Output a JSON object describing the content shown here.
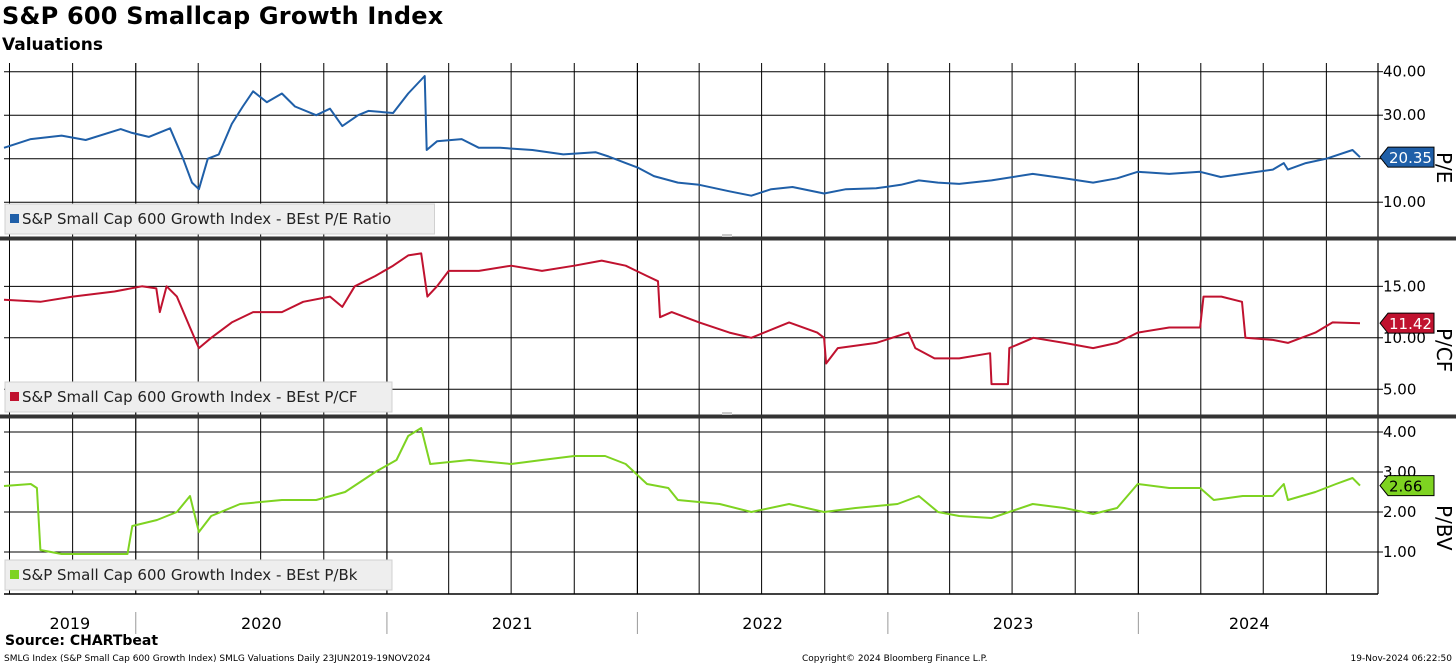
{
  "header": {
    "title": "S&P 600 Smallcap Growth Index",
    "subtitle": "Valuations"
  },
  "footer": {
    "source": "Source: CHARTbeat",
    "left": "SMLG Index (S&P Small Cap 600 Growth Index) SMLG Valuations  Daily 23JUN2019-19NOV2024",
    "middle": "Copyright© 2024 Bloomberg Finance L.P.",
    "right": "19-Nov-2024 06:22:50"
  },
  "colors": {
    "pe": "#1f5fa8",
    "pcf": "#c0122f",
    "pbv": "#7ed321",
    "grid": "#000000"
  },
  "chart_data": [
    {
      "type": "line",
      "axis_title": "P/E",
      "x_axis": [
        "2019",
        "2020",
        "2021",
        "2022",
        "2023",
        "2024"
      ],
      "y_ticks": [
        "40.00",
        "30.00",
        "20.00",
        "10.00"
      ],
      "ylim": [
        2,
        42
      ],
      "last_value_label": "20.35",
      "series": [
        {
          "name": "S&P Small Cap 600 Growth Index - BEst P/E Ratio",
          "points": [
            [
              "2019-06-23",
              22.5
            ],
            [
              "2019-08-01",
              24.5
            ],
            [
              "2019-09-15",
              25.3
            ],
            [
              "2019-10-20",
              24.3
            ],
            [
              "2019-12-10",
              26.8
            ],
            [
              "2019-12-25",
              26.0
            ],
            [
              "2020-01-20",
              25.0
            ],
            [
              "2020-02-20",
              27.0
            ],
            [
              "2020-03-10",
              20.0
            ],
            [
              "2020-03-23",
              14.5
            ],
            [
              "2020-04-02",
              13.0
            ],
            [
              "2020-04-15",
              20.0
            ],
            [
              "2020-05-01",
              21.0
            ],
            [
              "2020-05-20",
              28.0
            ],
            [
              "2020-06-05",
              32.0
            ],
            [
              "2020-06-20",
              35.5
            ],
            [
              "2020-07-10",
              33.0
            ],
            [
              "2020-08-01",
              35.0
            ],
            [
              "2020-08-20",
              32.0
            ],
            [
              "2020-09-20",
              30.0
            ],
            [
              "2020-10-10",
              31.5
            ],
            [
              "2020-10-28",
              27.5
            ],
            [
              "2020-11-20",
              30.0
            ],
            [
              "2020-12-05",
              31.0
            ],
            [
              "2021-01-10",
              30.5
            ],
            [
              "2021-02-01",
              35.0
            ],
            [
              "2021-02-25",
              39.0
            ],
            [
              "2021-02-28",
              22.0
            ],
            [
              "2021-03-15",
              24.0
            ],
            [
              "2021-04-20",
              24.5
            ],
            [
              "2021-05-15",
              22.5
            ],
            [
              "2021-06-15",
              22.5
            ],
            [
              "2021-08-01",
              22.0
            ],
            [
              "2021-09-15",
              21.0
            ],
            [
              "2021-11-01",
              21.5
            ],
            [
              "2021-11-20",
              20.5
            ],
            [
              "2021-12-15",
              19.0
            ],
            [
              "2022-01-01",
              18.0
            ],
            [
              "2022-01-25",
              16.0
            ],
            [
              "2022-03-01",
              14.5
            ],
            [
              "2022-04-01",
              14.0
            ],
            [
              "2022-05-15",
              12.5
            ],
            [
              "2022-06-16",
              11.5
            ],
            [
              "2022-07-15",
              13.0
            ],
            [
              "2022-08-15",
              13.5
            ],
            [
              "2022-09-30",
              12.0
            ],
            [
              "2022-11-01",
              13.0
            ],
            [
              "2022-12-15",
              13.2
            ],
            [
              "2023-01-20",
              14.0
            ],
            [
              "2023-02-15",
              15.0
            ],
            [
              "2023-03-15",
              14.5
            ],
            [
              "2023-04-15",
              14.2
            ],
            [
              "2023-06-01",
              15.0
            ],
            [
              "2023-07-31",
              16.5
            ],
            [
              "2023-09-15",
              15.5
            ],
            [
              "2023-10-27",
              14.5
            ],
            [
              "2023-12-01",
              15.5
            ],
            [
              "2023-12-31",
              17.0
            ],
            [
              "2024-02-15",
              16.5
            ],
            [
              "2024-03-31",
              17.0
            ],
            [
              "2024-04-30",
              15.8
            ],
            [
              "2024-06-01",
              16.5
            ],
            [
              "2024-07-15",
              17.5
            ],
            [
              "2024-07-31",
              19.0
            ],
            [
              "2024-08-06",
              17.5
            ],
            [
              "2024-09-01",
              19.0
            ],
            [
              "2024-10-01",
              20.0
            ],
            [
              "2024-11-08",
              22.0
            ],
            [
              "2024-11-19",
              20.35
            ]
          ]
        }
      ]
    },
    {
      "type": "line",
      "axis_title": "P/CF",
      "x_axis": [
        "2019",
        "2020",
        "2021",
        "2022",
        "2023",
        "2024"
      ],
      "y_ticks": [
        "15.00",
        "10.00",
        "5.00"
      ],
      "ylim": [
        2.5,
        19.5
      ],
      "last_value_label": "11.42",
      "series": [
        {
          "name": "S&P Small Cap 600 Growth Index - BEst P/CF",
          "points": [
            [
              "2019-06-23",
              13.7
            ],
            [
              "2019-08-15",
              13.5
            ],
            [
              "2019-10-01",
              14.0
            ],
            [
              "2019-12-01",
              14.5
            ],
            [
              "2020-01-10",
              15.0
            ],
            [
              "2020-01-31",
              14.8
            ],
            [
              "2020-02-05",
              12.5
            ],
            [
              "2020-02-15",
              15.0
            ],
            [
              "2020-03-01",
              14.0
            ],
            [
              "2020-03-20",
              11.0
            ],
            [
              "2020-04-02",
              9.0
            ],
            [
              "2020-04-20",
              10.0
            ],
            [
              "2020-05-20",
              11.5
            ],
            [
              "2020-06-20",
              12.5
            ],
            [
              "2020-08-01",
              12.5
            ],
            [
              "2020-09-01",
              13.5
            ],
            [
              "2020-10-10",
              14.0
            ],
            [
              "2020-10-28",
              13.0
            ],
            [
              "2020-11-15",
              15.0
            ],
            [
              "2020-12-15",
              16.0
            ],
            [
              "2021-01-10",
              17.0
            ],
            [
              "2021-02-01",
              18.0
            ],
            [
              "2021-02-20",
              18.2
            ],
            [
              "2021-03-01",
              14.0
            ],
            [
              "2021-03-15",
              15.0
            ],
            [
              "2021-04-01",
              16.5
            ],
            [
              "2021-05-15",
              16.5
            ],
            [
              "2021-07-01",
              17.0
            ],
            [
              "2021-08-15",
              16.5
            ],
            [
              "2021-10-01",
              17.0
            ],
            [
              "2021-11-10",
              17.5
            ],
            [
              "2021-12-15",
              17.0
            ],
            [
              "2022-01-15",
              16.0
            ],
            [
              "2022-01-31",
              15.5
            ],
            [
              "2022-02-03",
              12.0
            ],
            [
              "2022-02-20",
              12.5
            ],
            [
              "2022-04-01",
              11.5
            ],
            [
              "2022-05-15",
              10.5
            ],
            [
              "2022-06-16",
              10.0
            ],
            [
              "2022-08-10",
              11.5
            ],
            [
              "2022-09-20",
              10.5
            ],
            [
              "2022-09-30",
              10.0
            ],
            [
              "2022-10-03",
              7.5
            ],
            [
              "2022-10-20",
              9.0
            ],
            [
              "2022-12-15",
              9.5
            ],
            [
              "2023-01-31",
              10.5
            ],
            [
              "2023-02-10",
              9.0
            ],
            [
              "2023-03-10",
              8.0
            ],
            [
              "2023-04-15",
              8.0
            ],
            [
              "2023-05-30",
              8.5
            ],
            [
              "2023-06-01",
              5.5
            ],
            [
              "2023-06-25",
              5.5
            ],
            [
              "2023-06-27",
              9.0
            ],
            [
              "2023-08-01",
              10.0
            ],
            [
              "2023-09-15",
              9.5
            ],
            [
              "2023-10-27",
              9.0
            ],
            [
              "2023-12-01",
              9.5
            ],
            [
              "2023-12-31",
              10.5
            ],
            [
              "2024-02-15",
              11.0
            ],
            [
              "2024-03-31",
              11.0
            ],
            [
              "2024-04-05",
              14.0
            ],
            [
              "2024-05-01",
              14.0
            ],
            [
              "2024-05-31",
              13.5
            ],
            [
              "2024-06-05",
              10.0
            ],
            [
              "2024-07-15",
              9.8
            ],
            [
              "2024-08-06",
              9.5
            ],
            [
              "2024-09-15",
              10.5
            ],
            [
              "2024-10-10",
              11.5
            ],
            [
              "2024-11-19",
              11.42
            ]
          ]
        }
      ]
    },
    {
      "type": "line",
      "axis_title": "P/BV",
      "x_axis": [
        "2019",
        "2020",
        "2021",
        "2022",
        "2023",
        "2024"
      ],
      "y_ticks": [
        "4.00",
        "3.00",
        "2.00",
        "1.00"
      ],
      "ylim": [
        -0.05,
        4.35
      ],
      "last_value_label": "2.66",
      "series": [
        {
          "name": "S&P Small Cap 600 Growth Index - BEst P/Bk",
          "points": [
            [
              "2019-06-23",
              2.65
            ],
            [
              "2019-08-01",
              2.7
            ],
            [
              "2019-08-10",
              2.6
            ],
            [
              "2019-08-15",
              1.05
            ],
            [
              "2019-09-15",
              0.95
            ],
            [
              "2019-11-01",
              0.95
            ],
            [
              "2019-12-20",
              0.95
            ],
            [
              "2019-12-27",
              1.65
            ],
            [
              "2020-02-01",
              1.8
            ],
            [
              "2020-03-01",
              2.0
            ],
            [
              "2020-03-20",
              2.4
            ],
            [
              "2020-04-02",
              1.5
            ],
            [
              "2020-04-20",
              1.9
            ],
            [
              "2020-06-01",
              2.2
            ],
            [
              "2020-08-01",
              2.3
            ],
            [
              "2020-09-20",
              2.3
            ],
            [
              "2020-11-01",
              2.5
            ],
            [
              "2020-12-15",
              3.0
            ],
            [
              "2021-01-15",
              3.3
            ],
            [
              "2021-02-01",
              3.9
            ],
            [
              "2021-02-20",
              4.1
            ],
            [
              "2021-03-05",
              3.2
            ],
            [
              "2021-05-01",
              3.3
            ],
            [
              "2021-07-01",
              3.2
            ],
            [
              "2021-08-15",
              3.3
            ],
            [
              "2021-10-01",
              3.4
            ],
            [
              "2021-11-15",
              3.4
            ],
            [
              "2021-12-15",
              3.2
            ],
            [
              "2022-01-15",
              2.7
            ],
            [
              "2022-02-15",
              2.6
            ],
            [
              "2022-03-01",
              2.3
            ],
            [
              "2022-05-01",
              2.2
            ],
            [
              "2022-06-16",
              2.0
            ],
            [
              "2022-08-10",
              2.2
            ],
            [
              "2022-09-30",
              2.0
            ],
            [
              "2022-11-15",
              2.1
            ],
            [
              "2023-01-15",
              2.2
            ],
            [
              "2023-02-15",
              2.4
            ],
            [
              "2023-03-15",
              2.0
            ],
            [
              "2023-04-15",
              1.9
            ],
            [
              "2023-06-01",
              1.85
            ],
            [
              "2023-07-31",
              2.2
            ],
            [
              "2023-09-15",
              2.1
            ],
            [
              "2023-10-27",
              1.95
            ],
            [
              "2023-12-01",
              2.1
            ],
            [
              "2023-12-31",
              2.7
            ],
            [
              "2024-02-15",
              2.6
            ],
            [
              "2024-03-31",
              2.6
            ],
            [
              "2024-04-20",
              2.3
            ],
            [
              "2024-06-01",
              2.4
            ],
            [
              "2024-07-15",
              2.4
            ],
            [
              "2024-07-31",
              2.7
            ],
            [
              "2024-08-06",
              2.3
            ],
            [
              "2024-09-15",
              2.5
            ],
            [
              "2024-10-15",
              2.7
            ],
            [
              "2024-11-08",
              2.85
            ],
            [
              "2024-11-19",
              2.66
            ]
          ]
        }
      ]
    }
  ]
}
